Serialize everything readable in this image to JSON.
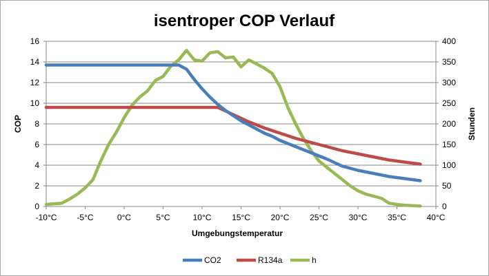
{
  "chart_data": {
    "type": "line",
    "title": "isentroper COP Verlauf",
    "xlabel": "Umgebungstemperatur",
    "ylabel_left": "COP",
    "ylabel_right": "Stunden",
    "xlim": [
      -10,
      40
    ],
    "ylim_left": [
      0,
      16
    ],
    "ylim_right": [
      0,
      400
    ],
    "x_ticks": [
      -10,
      -5,
      0,
      5,
      10,
      15,
      20,
      25,
      30,
      35,
      40
    ],
    "x_tick_labels": [
      "-10°C",
      "-5°C",
      "0°C",
      "5°C",
      "10°C",
      "15°C",
      "20°C",
      "25°C",
      "30°C",
      "35°C",
      "40°C"
    ],
    "y_left_ticks": [
      0,
      2,
      4,
      6,
      8,
      10,
      12,
      14,
      16
    ],
    "y_left_tick_labels": [
      "0",
      "2",
      "4",
      "6",
      "8",
      "10",
      "12",
      "14",
      "16"
    ],
    "y_right_ticks": [
      0,
      50,
      100,
      150,
      200,
      250,
      300,
      350,
      400
    ],
    "y_right_tick_labels": [
      "0",
      "50",
      "100",
      "150",
      "200",
      "250",
      "300",
      "350",
      "400"
    ],
    "grid": "horizontal",
    "legend_position": "bottom",
    "series": [
      {
        "name": "CO2",
        "axis": "left",
        "color": "#4a7ebb",
        "x": [
          -10,
          0,
          7,
          8,
          9,
          10,
          11,
          12,
          13,
          14,
          15,
          16,
          17,
          18,
          19,
          20,
          22,
          24,
          26,
          28,
          30,
          32,
          34,
          36,
          38
        ],
        "y": [
          13.7,
          13.7,
          13.7,
          13.3,
          12.3,
          11.4,
          10.6,
          9.9,
          9.3,
          8.8,
          8.3,
          7.9,
          7.5,
          7.1,
          6.8,
          6.4,
          5.8,
          5.2,
          4.6,
          3.9,
          3.5,
          3.2,
          2.9,
          2.7,
          2.5
        ]
      },
      {
        "name": "R134a",
        "axis": "left",
        "color": "#be4b48",
        "x": [
          -10,
          0,
          5,
          10,
          12,
          14,
          16,
          18,
          20,
          22,
          24,
          26,
          28,
          30,
          32,
          34,
          36,
          38
        ],
        "y": [
          9.6,
          9.6,
          9.6,
          9.6,
          9.6,
          8.9,
          8.2,
          7.6,
          7.1,
          6.6,
          6.2,
          5.8,
          5.4,
          5.1,
          4.8,
          4.5,
          4.3,
          4.1
        ]
      },
      {
        "name": "h",
        "axis": "right",
        "color": "#98b954",
        "x": [
          -10,
          -8,
          -7,
          -6,
          -5,
          -4,
          -3,
          -2,
          -1,
          0,
          1,
          2,
          3,
          4,
          5,
          6,
          7,
          8,
          9,
          10,
          11,
          12,
          13,
          14,
          15,
          16,
          17,
          18,
          19,
          20,
          21,
          22,
          23,
          24,
          25,
          26,
          27,
          28,
          29,
          30,
          31,
          32,
          33,
          34,
          35,
          36,
          37,
          38
        ],
        "y": [
          5,
          8,
          18,
          30,
          45,
          65,
          110,
          150,
          180,
          215,
          245,
          265,
          280,
          305,
          315,
          340,
          355,
          378,
          355,
          352,
          372,
          375,
          360,
          362,
          338,
          355,
          345,
          335,
          322,
          290,
          240,
          200,
          165,
          135,
          110,
          95,
          80,
          65,
          50,
          38,
          30,
          25,
          20,
          8,
          5,
          3,
          2,
          1
        ]
      }
    ]
  }
}
